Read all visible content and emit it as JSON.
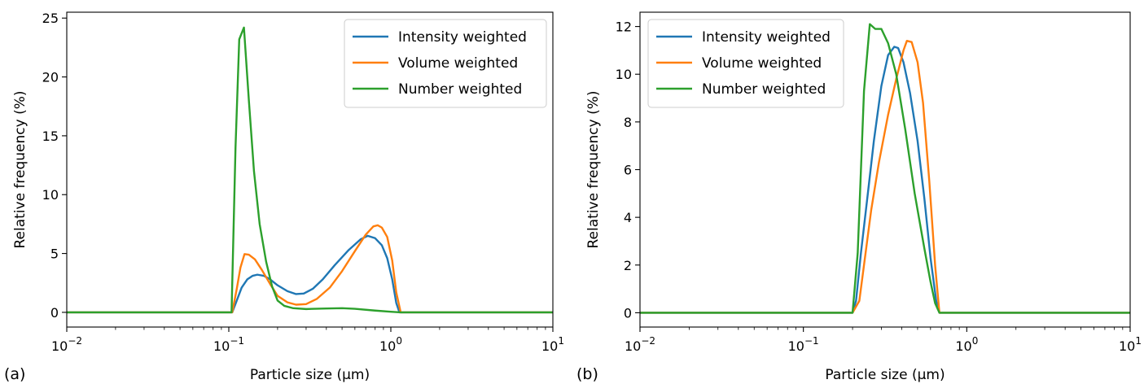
{
  "chart_data": [
    {
      "type": "line",
      "panel_label": "(a)",
      "xlabel": "Particle size (μm)",
      "ylabel": "Relative frequency (%)",
      "xscale": "log",
      "xlim": [
        0.01,
        10
      ],
      "ylim": [
        -1.25,
        25.5
      ],
      "x_ticks": [
        {
          "value": 0.01,
          "base": "10",
          "exp": "−2"
        },
        {
          "value": 0.1,
          "base": "10",
          "exp": "−1"
        },
        {
          "value": 1,
          "base": "10",
          "exp": "0"
        },
        {
          "value": 10,
          "base": "10",
          "exp": "1"
        }
      ],
      "y_ticks": [
        {
          "value": 0,
          "label": "0"
        },
        {
          "value": 5,
          "label": "5"
        },
        {
          "value": 10,
          "label": "10"
        },
        {
          "value": 15,
          "label": "15"
        },
        {
          "value": 20,
          "label": "20"
        },
        {
          "value": 25,
          "label": "25"
        }
      ],
      "grid": false,
      "legend_position": "top-right",
      "series": [
        {
          "name": "Intensity weighted",
          "color": "#1f77b4",
          "points": [
            [
              0.01,
              0
            ],
            [
              0.105,
              0
            ],
            [
              0.112,
              1.0
            ],
            [
              0.12,
              2.1
            ],
            [
              0.13,
              2.8
            ],
            [
              0.14,
              3.1
            ],
            [
              0.15,
              3.2
            ],
            [
              0.165,
              3.1
            ],
            [
              0.18,
              2.8
            ],
            [
              0.2,
              2.3
            ],
            [
              0.23,
              1.8
            ],
            [
              0.26,
              1.55
            ],
            [
              0.29,
              1.6
            ],
            [
              0.33,
              2.0
            ],
            [
              0.38,
              2.8
            ],
            [
              0.45,
              4.0
            ],
            [
              0.55,
              5.3
            ],
            [
              0.65,
              6.2
            ],
            [
              0.72,
              6.5
            ],
            [
              0.8,
              6.3
            ],
            [
              0.88,
              5.7
            ],
            [
              0.95,
              4.6
            ],
            [
              1.02,
              2.8
            ],
            [
              1.08,
              0.8
            ],
            [
              1.13,
              0
            ],
            [
              10,
              0
            ]
          ]
        },
        {
          "name": "Volume weighted",
          "color": "#ff7f0e",
          "points": [
            [
              0.01,
              0
            ],
            [
              0.105,
              0
            ],
            [
              0.112,
              2.0
            ],
            [
              0.118,
              3.8
            ],
            [
              0.125,
              4.95
            ],
            [
              0.133,
              4.9
            ],
            [
              0.145,
              4.5
            ],
            [
              0.16,
              3.6
            ],
            [
              0.18,
              2.4
            ],
            [
              0.2,
              1.4
            ],
            [
              0.23,
              0.85
            ],
            [
              0.26,
              0.65
            ],
            [
              0.3,
              0.7
            ],
            [
              0.35,
              1.15
            ],
            [
              0.42,
              2.1
            ],
            [
              0.5,
              3.5
            ],
            [
              0.6,
              5.2
            ],
            [
              0.7,
              6.6
            ],
            [
              0.78,
              7.3
            ],
            [
              0.83,
              7.4
            ],
            [
              0.88,
              7.2
            ],
            [
              0.95,
              6.4
            ],
            [
              1.02,
              4.4
            ],
            [
              1.08,
              1.7
            ],
            [
              1.15,
              0
            ],
            [
              10,
              0
            ]
          ]
        },
        {
          "name": "Number weighted",
          "color": "#2ca02c",
          "points": [
            [
              0.01,
              0
            ],
            [
              0.104,
              0
            ],
            [
              0.11,
              14
            ],
            [
              0.116,
              23.2
            ],
            [
              0.124,
              24.2
            ],
            [
              0.133,
              18
            ],
            [
              0.143,
              12
            ],
            [
              0.155,
              7.5
            ],
            [
              0.17,
              4.3
            ],
            [
              0.185,
              2.2
            ],
            [
              0.2,
              1.0
            ],
            [
              0.22,
              0.55
            ],
            [
              0.25,
              0.35
            ],
            [
              0.3,
              0.28
            ],
            [
              0.4,
              0.33
            ],
            [
              0.5,
              0.35
            ],
            [
              0.6,
              0.3
            ],
            [
              0.8,
              0.15
            ],
            [
              1.0,
              0.05
            ],
            [
              1.15,
              0
            ],
            [
              10,
              0
            ]
          ]
        }
      ]
    },
    {
      "type": "line",
      "panel_label": "(b)",
      "xlabel": "Particle size (μm)",
      "ylabel": "Relative frequency (%)",
      "xscale": "log",
      "xlim": [
        0.01,
        10
      ],
      "ylim": [
        -0.6,
        12.6
      ],
      "x_ticks": [
        {
          "value": 0.01,
          "base": "10",
          "exp": "−2"
        },
        {
          "value": 0.1,
          "base": "10",
          "exp": "−1"
        },
        {
          "value": 1,
          "base": "10",
          "exp": "0"
        },
        {
          "value": 10,
          "base": "10",
          "exp": "1"
        }
      ],
      "y_ticks": [
        {
          "value": 0,
          "label": "0"
        },
        {
          "value": 2,
          "label": "2"
        },
        {
          "value": 4,
          "label": "4"
        },
        {
          "value": 6,
          "label": "6"
        },
        {
          "value": 8,
          "label": "8"
        },
        {
          "value": 10,
          "label": "10"
        },
        {
          "value": 12,
          "label": "12"
        }
      ],
      "grid": false,
      "legend_position": "top-left",
      "series": [
        {
          "name": "Intensity weighted",
          "color": "#1f77b4",
          "points": [
            [
              0.01,
              0
            ],
            [
              0.2,
              0
            ],
            [
              0.21,
              0.5
            ],
            [
              0.225,
              2.5
            ],
            [
              0.25,
              5.2
            ],
            [
              0.27,
              7.2
            ],
            [
              0.3,
              9.5
            ],
            [
              0.33,
              10.8
            ],
            [
              0.36,
              11.15
            ],
            [
              0.38,
              11.1
            ],
            [
              0.41,
              10.5
            ],
            [
              0.45,
              9.2
            ],
            [
              0.5,
              7.2
            ],
            [
              0.55,
              4.8
            ],
            [
              0.6,
              2.3
            ],
            [
              0.65,
              0.5
            ],
            [
              0.68,
              0
            ],
            [
              10,
              0
            ]
          ]
        },
        {
          "name": "Volume weighted",
          "color": "#ff7f0e",
          "points": [
            [
              0.01,
              0
            ],
            [
              0.2,
              0
            ],
            [
              0.22,
              0.5
            ],
            [
              0.235,
              2.0
            ],
            [
              0.26,
              4.3
            ],
            [
              0.29,
              6.3
            ],
            [
              0.33,
              8.3
            ],
            [
              0.37,
              9.8
            ],
            [
              0.41,
              11.0
            ],
            [
              0.43,
              11.4
            ],
            [
              0.46,
              11.35
            ],
            [
              0.5,
              10.5
            ],
            [
              0.54,
              8.8
            ],
            [
              0.59,
              5.5
            ],
            [
              0.64,
              2.0
            ],
            [
              0.68,
              0
            ],
            [
              10,
              0
            ]
          ]
        },
        {
          "name": "Number weighted",
          "color": "#2ca02c",
          "points": [
            [
              0.01,
              0
            ],
            [
              0.2,
              0
            ],
            [
              0.215,
              2.5
            ],
            [
              0.235,
              9.3
            ],
            [
              0.255,
              12.1
            ],
            [
              0.275,
              11.9
            ],
            [
              0.3,
              11.9
            ],
            [
              0.33,
              11.3
            ],
            [
              0.37,
              10.0
            ],
            [
              0.42,
              7.7
            ],
            [
              0.48,
              5.0
            ],
            [
              0.55,
              2.7
            ],
            [
              0.6,
              1.3
            ],
            [
              0.64,
              0.4
            ],
            [
              0.68,
              0
            ],
            [
              10,
              0
            ]
          ]
        }
      ]
    }
  ]
}
